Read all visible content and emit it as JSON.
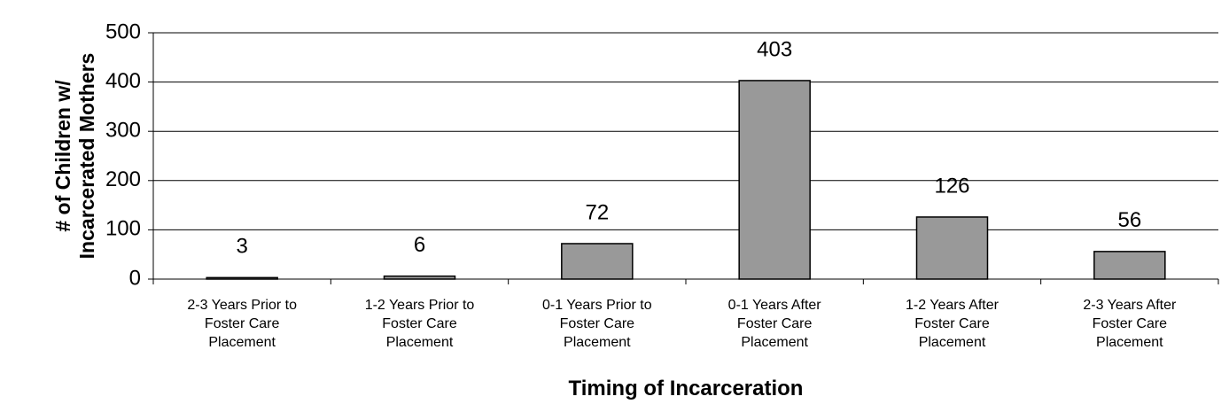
{
  "chart_data": {
    "type": "bar",
    "x_label": "Timing of Incarceration",
    "y_label": "# of Children w/\nIncarcerated Mothers",
    "categories": [
      "2-3 Years Prior to\nFoster Care\nPlacement",
      "1-2 Years Prior to\nFoster Care\nPlacement",
      "0-1 Years Prior to\nFoster Care\nPlacement",
      "0-1 Years After\nFoster Care\nPlacement",
      "1-2 Years After\nFoster Care\nPlacement",
      "2-3 Years After\nFoster Care\nPlacement"
    ],
    "values": [
      3,
      6,
      72,
      403,
      126,
      56
    ],
    "color": "#999999",
    "ylim": [
      0,
      500
    ],
    "yticks": [
      0,
      100,
      200,
      300,
      400,
      500
    ],
    "grid": true
  }
}
